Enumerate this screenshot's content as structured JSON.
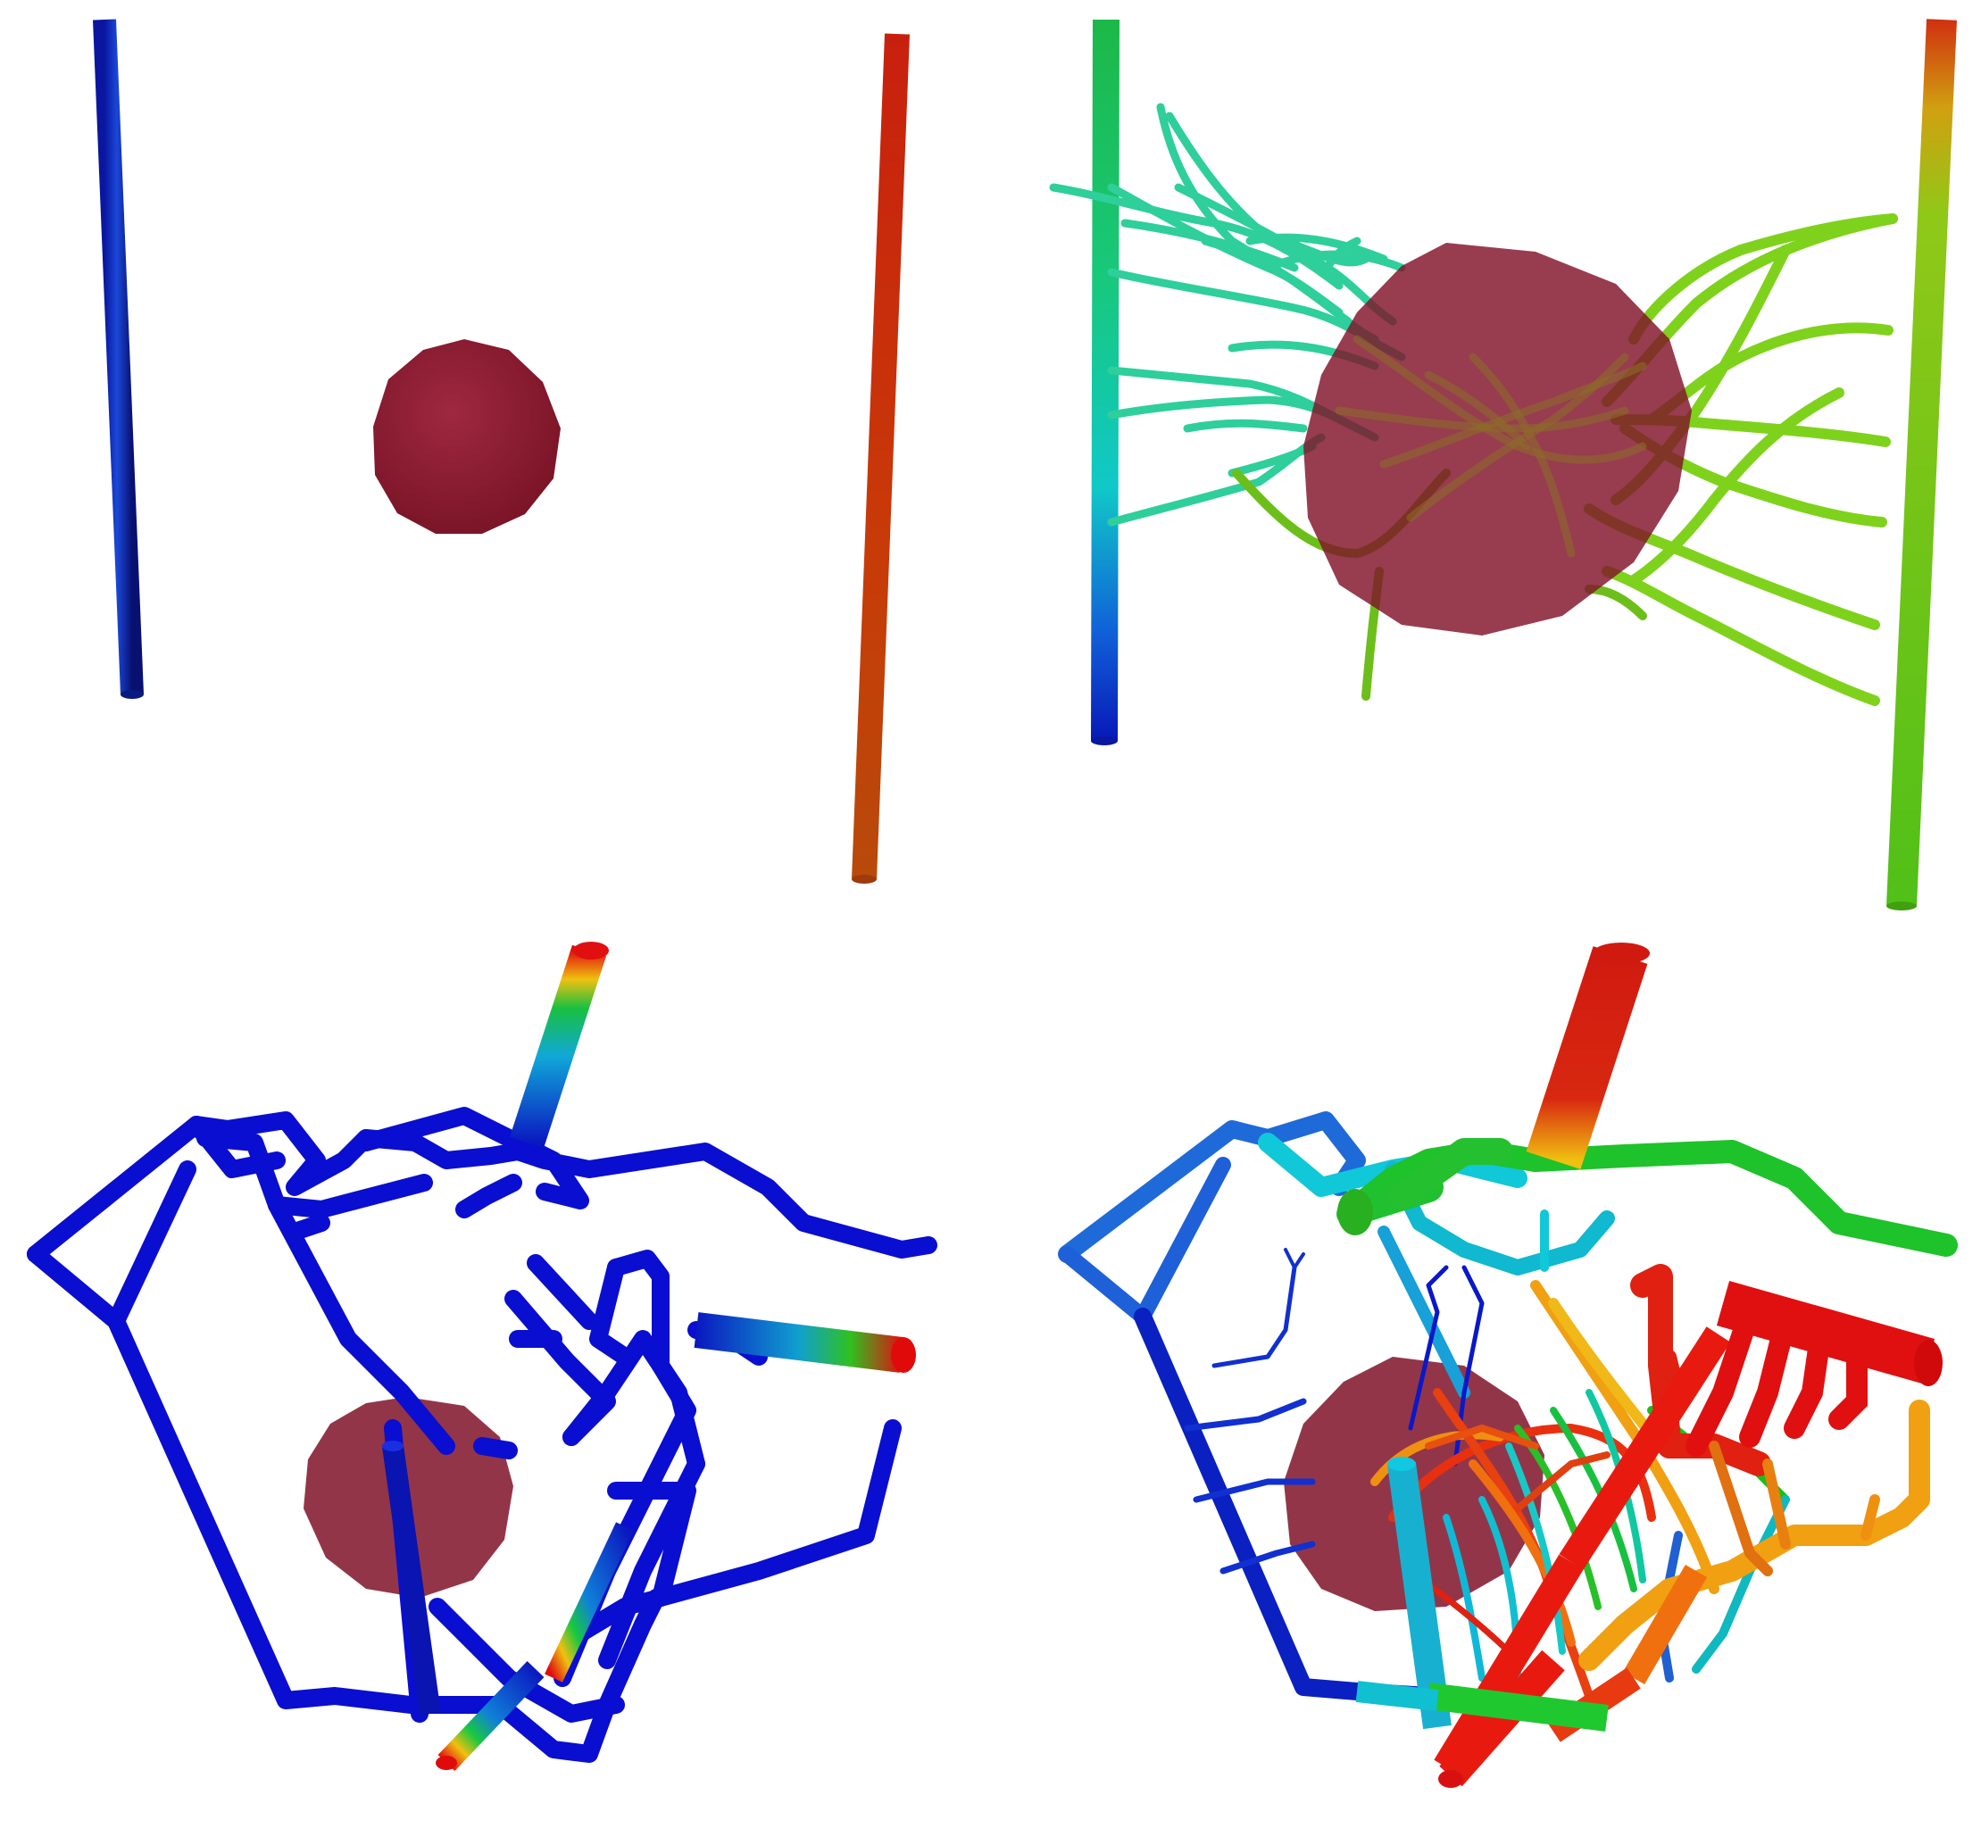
{
  "figure": {
    "panels": [
      {
        "id": "top-left",
        "scene": "initial-vessels-and-tumor"
      },
      {
        "id": "top-right",
        "scene": "angiogenic-sprouting-into-tumor"
      },
      {
        "id": "bottom-left",
        "scene": "initial-network-and-tumor"
      },
      {
        "id": "bottom-right",
        "scene": "grown-network-and-tumor"
      }
    ],
    "colormap": [
      "#0a14c8",
      "#1a7ad8",
      "#10d0d0",
      "#18c828",
      "#7ed21a",
      "#f0b010",
      "#e84a10",
      "#e01010"
    ],
    "colors": {
      "tumor": "#8a1a2c",
      "tumor_translucent": "rgba(130,20,40,0.78)",
      "background": "#ffffff"
    }
  }
}
